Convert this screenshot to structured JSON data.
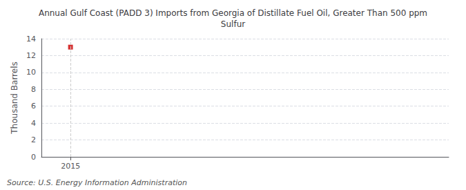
{
  "chart_data": {
    "type": "scatter",
    "title": "Annual Gulf Coast (PADD 3) Imports from Georgia of Distillate Fuel Oil, Greater Than 500 ppm\nSulfur",
    "ylabel": "Thousand Barrels",
    "annotations": [
      "Source: U.S. Energy Information Administration"
    ],
    "x": [
      2015
    ],
    "values": [
      13
    ],
    "color": "#cc0000",
    "marker": "square",
    "xlim": [
      2014.5,
      2021.5
    ],
    "xticks": [
      2015
    ],
    "ylim": [
      0,
      14
    ],
    "yticks": [
      0,
      2,
      4,
      6,
      8,
      10,
      12,
      14
    ],
    "grid": true
  }
}
